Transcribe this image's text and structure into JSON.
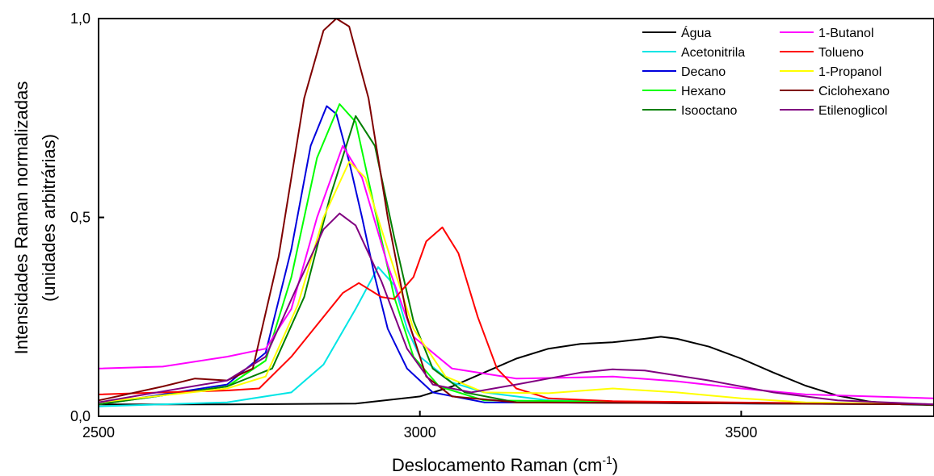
{
  "chart_data": {
    "type": "line",
    "xlabel": "Deslocamento Raman (cm",
    "xlabel_sup": "-1",
    "xlabel_suffix": ")",
    "ylabel_line1": "Intensidades Raman normalizadas",
    "ylabel_line2": "(unidades arbitrárias)",
    "xlim": [
      2500,
      3800
    ],
    "ylim": [
      0.0,
      1.0
    ],
    "x_ticks": [
      {
        "value": 2500,
        "label": "2500"
      },
      {
        "value": 3000,
        "label": "3000"
      },
      {
        "value": 3500,
        "label": "3500"
      }
    ],
    "y_ticks": [
      {
        "value": 0.0,
        "label": "0,0"
      },
      {
        "value": 0.5,
        "label": "0,5"
      },
      {
        "value": 1.0,
        "label": "1,0"
      }
    ],
    "grid": false,
    "legend_position": "top-right",
    "series": [
      {
        "name": "Água",
        "color": "#000000",
        "points": [
          [
            2500,
            0.03
          ],
          [
            2700,
            0.03
          ],
          [
            2900,
            0.032
          ],
          [
            3000,
            0.05
          ],
          [
            3050,
            0.075
          ],
          [
            3100,
            0.11
          ],
          [
            3150,
            0.145
          ],
          [
            3200,
            0.17
          ],
          [
            3250,
            0.182
          ],
          [
            3300,
            0.186
          ],
          [
            3350,
            0.195
          ],
          [
            3375,
            0.2
          ],
          [
            3400,
            0.195
          ],
          [
            3450,
            0.175
          ],
          [
            3500,
            0.145
          ],
          [
            3550,
            0.11
          ],
          [
            3600,
            0.077
          ],
          [
            3650,
            0.052
          ],
          [
            3700,
            0.037
          ],
          [
            3750,
            0.03
          ],
          [
            3800,
            0.028
          ]
        ]
      },
      {
        "name": "Acetonitrila",
        "color": "#00e5e5",
        "points": [
          [
            2500,
            0.025
          ],
          [
            2700,
            0.035
          ],
          [
            2740,
            0.045
          ],
          [
            2800,
            0.06
          ],
          [
            2850,
            0.13
          ],
          [
            2900,
            0.27
          ],
          [
            2935,
            0.375
          ],
          [
            2960,
            0.33
          ],
          [
            2980,
            0.22
          ],
          [
            3000,
            0.15
          ],
          [
            3050,
            0.085
          ],
          [
            3100,
            0.06
          ],
          [
            3200,
            0.04
          ],
          [
            3400,
            0.033
          ],
          [
            3800,
            0.03
          ]
        ]
      },
      {
        "name": "Decano",
        "color": "#0000dd",
        "points": [
          [
            2500,
            0.03
          ],
          [
            2700,
            0.08
          ],
          [
            2760,
            0.16
          ],
          [
            2800,
            0.42
          ],
          [
            2830,
            0.68
          ],
          [
            2855,
            0.78
          ],
          [
            2870,
            0.76
          ],
          [
            2890,
            0.64
          ],
          [
            2910,
            0.5
          ],
          [
            2930,
            0.35
          ],
          [
            2950,
            0.22
          ],
          [
            2980,
            0.12
          ],
          [
            3020,
            0.06
          ],
          [
            3100,
            0.035
          ],
          [
            3800,
            0.03
          ]
        ]
      },
      {
        "name": "Hexano",
        "color": "#00ff00",
        "points": [
          [
            2500,
            0.03
          ],
          [
            2700,
            0.075
          ],
          [
            2760,
            0.14
          ],
          [
            2800,
            0.35
          ],
          [
            2840,
            0.65
          ],
          [
            2875,
            0.785
          ],
          [
            2900,
            0.74
          ],
          [
            2930,
            0.52
          ],
          [
            2960,
            0.3
          ],
          [
            2990,
            0.15
          ],
          [
            3030,
            0.075
          ],
          [
            3100,
            0.04
          ],
          [
            3800,
            0.03
          ]
        ]
      },
      {
        "name": "Isooctano",
        "color": "#007f00",
        "points": [
          [
            2500,
            0.03
          ],
          [
            2700,
            0.075
          ],
          [
            2770,
            0.12
          ],
          [
            2820,
            0.3
          ],
          [
            2860,
            0.55
          ],
          [
            2900,
            0.755
          ],
          [
            2930,
            0.68
          ],
          [
            2960,
            0.45
          ],
          [
            2990,
            0.24
          ],
          [
            3020,
            0.12
          ],
          [
            3070,
            0.06
          ],
          [
            3150,
            0.035
          ],
          [
            3800,
            0.03
          ]
        ]
      },
      {
        "name": "1-Butanol",
        "color": "#ff00ff",
        "points": [
          [
            2500,
            0.12
          ],
          [
            2600,
            0.125
          ],
          [
            2700,
            0.15
          ],
          [
            2760,
            0.17
          ],
          [
            2800,
            0.27
          ],
          [
            2840,
            0.5
          ],
          [
            2880,
            0.68
          ],
          [
            2910,
            0.6
          ],
          [
            2950,
            0.38
          ],
          [
            2990,
            0.2
          ],
          [
            3050,
            0.12
          ],
          [
            3150,
            0.095
          ],
          [
            3250,
            0.098
          ],
          [
            3300,
            0.1
          ],
          [
            3400,
            0.088
          ],
          [
            3500,
            0.07
          ],
          [
            3600,
            0.055
          ],
          [
            3800,
            0.045
          ]
        ]
      },
      {
        "name": "Tolueno",
        "color": "#ff0000",
        "points": [
          [
            2500,
            0.055
          ],
          [
            2600,
            0.06
          ],
          [
            2700,
            0.065
          ],
          [
            2750,
            0.07
          ],
          [
            2800,
            0.15
          ],
          [
            2850,
            0.25
          ],
          [
            2880,
            0.31
          ],
          [
            2905,
            0.335
          ],
          [
            2940,
            0.3
          ],
          [
            2960,
            0.295
          ],
          [
            2990,
            0.35
          ],
          [
            3010,
            0.44
          ],
          [
            3035,
            0.475
          ],
          [
            3060,
            0.41
          ],
          [
            3090,
            0.25
          ],
          [
            3120,
            0.12
          ],
          [
            3150,
            0.07
          ],
          [
            3200,
            0.045
          ],
          [
            3300,
            0.038
          ],
          [
            3800,
            0.03
          ]
        ]
      },
      {
        "name": "1-Propanol",
        "color": "#ffff00",
        "points": [
          [
            2500,
            0.035
          ],
          [
            2700,
            0.07
          ],
          [
            2760,
            0.1
          ],
          [
            2810,
            0.28
          ],
          [
            2850,
            0.5
          ],
          [
            2890,
            0.64
          ],
          [
            2915,
            0.6
          ],
          [
            2950,
            0.42
          ],
          [
            2990,
            0.22
          ],
          [
            3040,
            0.1
          ],
          [
            3100,
            0.06
          ],
          [
            3200,
            0.058
          ],
          [
            3300,
            0.07
          ],
          [
            3400,
            0.06
          ],
          [
            3500,
            0.045
          ],
          [
            3600,
            0.035
          ],
          [
            3800,
            0.03
          ]
        ]
      },
      {
        "name": "Ciclohexano",
        "color": "#7f0000",
        "points": [
          [
            2500,
            0.04
          ],
          [
            2600,
            0.075
          ],
          [
            2650,
            0.095
          ],
          [
            2700,
            0.09
          ],
          [
            2740,
            0.12
          ],
          [
            2780,
            0.4
          ],
          [
            2820,
            0.8
          ],
          [
            2850,
            0.97
          ],
          [
            2870,
            1.0
          ],
          [
            2890,
            0.98
          ],
          [
            2920,
            0.8
          ],
          [
            2950,
            0.5
          ],
          [
            2980,
            0.25
          ],
          [
            3010,
            0.1
          ],
          [
            3050,
            0.05
          ],
          [
            3150,
            0.035
          ],
          [
            3800,
            0.03
          ]
        ]
      },
      {
        "name": "Etilenoglicol",
        "color": "#800080",
        "points": [
          [
            2500,
            0.035
          ],
          [
            2700,
            0.09
          ],
          [
            2760,
            0.15
          ],
          [
            2810,
            0.33
          ],
          [
            2850,
            0.47
          ],
          [
            2875,
            0.51
          ],
          [
            2900,
            0.48
          ],
          [
            2940,
            0.34
          ],
          [
            2980,
            0.17
          ],
          [
            3020,
            0.08
          ],
          [
            3080,
            0.06
          ],
          [
            3150,
            0.08
          ],
          [
            3250,
            0.11
          ],
          [
            3300,
            0.118
          ],
          [
            3350,
            0.115
          ],
          [
            3450,
            0.09
          ],
          [
            3550,
            0.06
          ],
          [
            3650,
            0.04
          ],
          [
            3800,
            0.03
          ]
        ]
      }
    ]
  }
}
